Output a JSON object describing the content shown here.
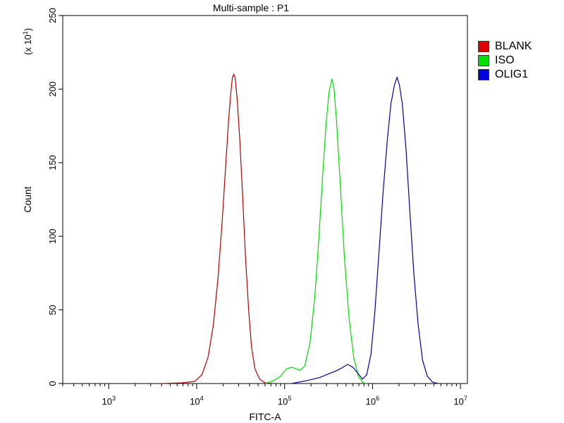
{
  "chart_data": {
    "type": "histogram",
    "title": "Multi-sample : P1",
    "xlabel": "FITC-A",
    "ylabel": "Count",
    "y_multiplier_label": "(x 10",
    "y_multiplier_exp": "1",
    "x_scale": "log",
    "xlim": [
      300,
      12000000
    ],
    "ylim": [
      0,
      250
    ],
    "x_ticks": [
      {
        "base": "10",
        "exp": "3",
        "value": 1000
      },
      {
        "base": "10",
        "exp": "4",
        "value": 10000
      },
      {
        "base": "10",
        "exp": "5",
        "value": 100000
      },
      {
        "base": "10",
        "exp": "6",
        "value": 1000000
      },
      {
        "base": "10",
        "exp": "7",
        "value": 10000000
      }
    ],
    "y_ticks": [
      {
        "label": "0",
        "value": 0
      },
      {
        "label": "50",
        "value": 50
      },
      {
        "label": "100",
        "value": 100
      },
      {
        "label": "150",
        "value": 150
      },
      {
        "label": "200",
        "value": 200
      },
      {
        "label": "250",
        "value": 250
      }
    ],
    "legend_position": "top-right",
    "series": [
      {
        "name": "BLANK",
        "color": "#b40000",
        "points": [
          [
            4000,
            0
          ],
          [
            7000,
            0.5
          ],
          [
            9500,
            1.5
          ],
          [
            11500,
            6
          ],
          [
            13500,
            18
          ],
          [
            15500,
            40
          ],
          [
            17500,
            72
          ],
          [
            19500,
            110
          ],
          [
            21500,
            150
          ],
          [
            23000,
            178
          ],
          [
            24500,
            198
          ],
          [
            25500,
            208
          ],
          [
            26500,
            210
          ],
          [
            27500,
            207
          ],
          [
            29000,
            192
          ],
          [
            31000,
            165
          ],
          [
            33500,
            125
          ],
          [
            36000,
            85
          ],
          [
            39000,
            50
          ],
          [
            42000,
            25
          ],
          [
            46000,
            10
          ],
          [
            52000,
            3
          ],
          [
            60000,
            0.5
          ],
          [
            75000,
            0
          ]
        ]
      },
      {
        "name": "ISO",
        "color": "#00dd00",
        "points": [
          [
            60000,
            0
          ],
          [
            75000,
            2
          ],
          [
            90000,
            5
          ],
          [
            105000,
            10
          ],
          [
            120000,
            11
          ],
          [
            135000,
            10
          ],
          [
            150000,
            9
          ],
          [
            170000,
            12
          ],
          [
            195000,
            28
          ],
          [
            220000,
            58
          ],
          [
            245000,
            98
          ],
          [
            270000,
            140
          ],
          [
            295000,
            175
          ],
          [
            320000,
            198
          ],
          [
            345000,
            207
          ],
          [
            365000,
            200
          ],
          [
            390000,
            178
          ],
          [
            430000,
            135
          ],
          [
            480000,
            85
          ],
          [
            540000,
            45
          ],
          [
            610000,
            18
          ],
          [
            690000,
            5
          ],
          [
            780000,
            0.5
          ],
          [
            860000,
            0
          ]
        ]
      },
      {
        "name": "OLIG1",
        "color": "#0000a0",
        "points": [
          [
            120000,
            0
          ],
          [
            180000,
            2
          ],
          [
            250000,
            4
          ],
          [
            330000,
            7
          ],
          [
            400000,
            9
          ],
          [
            460000,
            11
          ],
          [
            520000,
            13
          ],
          [
            600000,
            11
          ],
          [
            680000,
            7
          ],
          [
            770000,
            3
          ],
          [
            860000,
            6
          ],
          [
            960000,
            20
          ],
          [
            1060000,
            48
          ],
          [
            1180000,
            88
          ],
          [
            1320000,
            130
          ],
          [
            1470000,
            165
          ],
          [
            1620000,
            190
          ],
          [
            1780000,
            203
          ],
          [
            1900000,
            208
          ],
          [
            2020000,
            203
          ],
          [
            2180000,
            190
          ],
          [
            2400000,
            160
          ],
          [
            2650000,
            118
          ],
          [
            2950000,
            75
          ],
          [
            3300000,
            40
          ],
          [
            3700000,
            16
          ],
          [
            4200000,
            5
          ],
          [
            4800000,
            1
          ],
          [
            5600000,
            0
          ]
        ]
      }
    ]
  }
}
